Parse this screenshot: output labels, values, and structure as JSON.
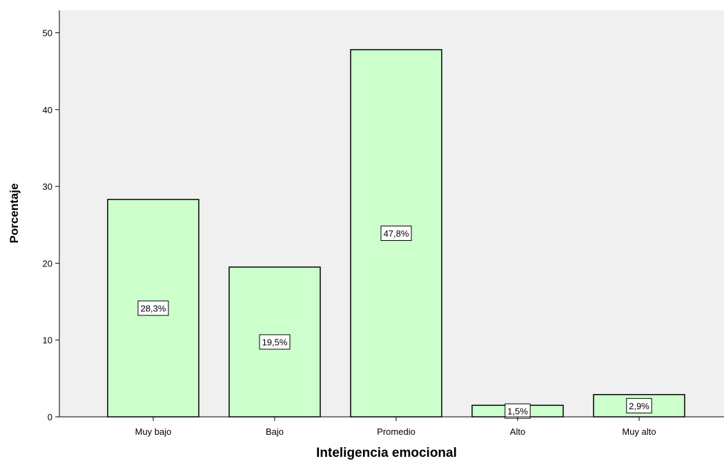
{
  "chart_data": {
    "type": "bar",
    "title": "",
    "xlabel": "Inteligencia emocional",
    "ylabel": "Porcentaje",
    "categories": [
      "Muy bajo",
      "Bajo",
      "Promedio",
      "Alto",
      "Muy alto"
    ],
    "values": [
      28.3,
      19.5,
      47.8,
      1.5,
      2.9
    ],
    "data_labels": [
      "28,3%",
      "19,5%",
      "47,8%",
      "1,5%",
      "2,9%"
    ],
    "yticks": [
      0,
      10,
      20,
      30,
      40,
      50
    ],
    "ylim": [
      0,
      53
    ],
    "grid": false,
    "legend": "none",
    "colors": {
      "bar_fill": "#ccffcc",
      "bar_stroke": "#000000",
      "plot_background": "#f0f0f0",
      "label_box_fill": "#ffffff"
    }
  }
}
